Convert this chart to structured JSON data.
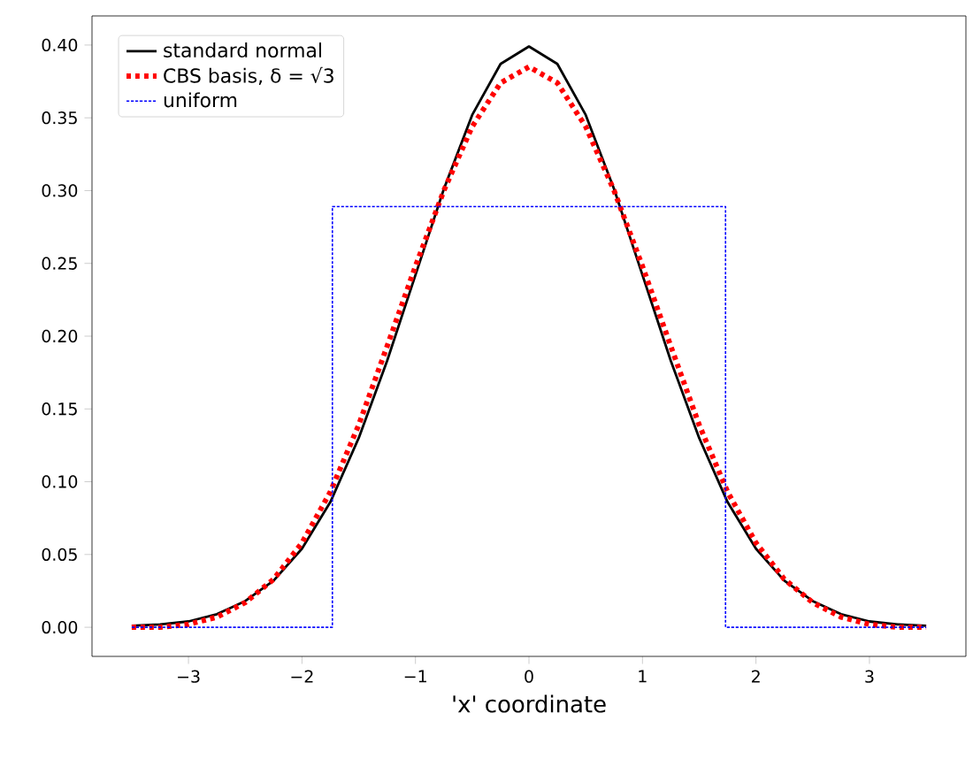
{
  "chart_data": {
    "type": "line",
    "xlabel": "'x' coordinate",
    "xlim": [
      -3.85,
      3.85
    ],
    "ylim": [
      -0.02,
      0.42
    ],
    "xticks": [
      {
        "value": -3,
        "label": "−3"
      },
      {
        "value": -2,
        "label": "−2"
      },
      {
        "value": -1,
        "label": "−1"
      },
      0,
      1,
      2,
      3
    ],
    "yticks": [
      {
        "value": 0,
        "label": "0.00"
      },
      {
        "value": 0.05,
        "label": "0.05"
      },
      {
        "value": 0.1,
        "label": "0.10"
      },
      {
        "value": 0.15,
        "label": "0.15"
      },
      {
        "value": 0.2,
        "label": "0.20"
      },
      {
        "value": 0.25,
        "label": "0.25"
      },
      {
        "value": 0.3,
        "label": "0.30"
      },
      {
        "value": 0.35,
        "label": "0.35"
      },
      {
        "value": 0.4,
        "label": "0.40"
      }
    ],
    "grid": false,
    "legend": "top left",
    "series": [
      {
        "name": "standard normal",
        "color": "#000000",
        "line_style": "solid",
        "x": [
          -3.5,
          -3.25,
          -3,
          -2.75,
          -2.5,
          -2.25,
          -2,
          -1.75,
          -1.5,
          -1.25,
          -1,
          -0.75,
          -0.5,
          -0.25,
          0,
          0.25,
          0.5,
          0.75,
          1,
          1.25,
          1.5,
          1.75,
          2,
          2.25,
          2.5,
          2.75,
          3,
          3.25,
          3.5
        ],
        "values": [
          0.001,
          0.002,
          0.004,
          0.009,
          0.018,
          0.032,
          0.054,
          0.086,
          0.13,
          0.183,
          0.242,
          0.301,
          0.352,
          0.387,
          0.399,
          0.387,
          0.352,
          0.301,
          0.242,
          0.183,
          0.13,
          0.086,
          0.054,
          0.032,
          0.018,
          0.009,
          0.004,
          0.002,
          0.001
        ]
      },
      {
        "name": "CBS basis, δ = √3",
        "color": "#ff0000",
        "line_style": "dotted",
        "x": [
          -3.5,
          -3.25,
          -3,
          -2.75,
          -2.5,
          -2.25,
          -2,
          -1.75,
          -1.5,
          -1.25,
          -1,
          -0.75,
          -0.5,
          -0.25,
          0,
          0.25,
          0.5,
          0.75,
          1,
          1.25,
          1.5,
          1.75,
          2,
          2.25,
          2.5,
          2.75,
          3,
          3.25,
          3.5
        ],
        "values": [
          0,
          0,
          0.002,
          0.007,
          0.017,
          0.033,
          0.058,
          0.093,
          0.139,
          0.193,
          0.248,
          0.3,
          0.344,
          0.374,
          0.385,
          0.374,
          0.344,
          0.3,
          0.248,
          0.193,
          0.139,
          0.093,
          0.058,
          0.033,
          0.017,
          0.007,
          0.002,
          0,
          0
        ]
      },
      {
        "name": "uniform",
        "color": "#0000ff",
        "line_style": "dashed",
        "x": [
          -3.5,
          -1.732,
          -1.732,
          1.732,
          1.732,
          3.5
        ],
        "values": [
          0,
          0,
          0.289,
          0.289,
          0,
          0
        ]
      }
    ]
  }
}
